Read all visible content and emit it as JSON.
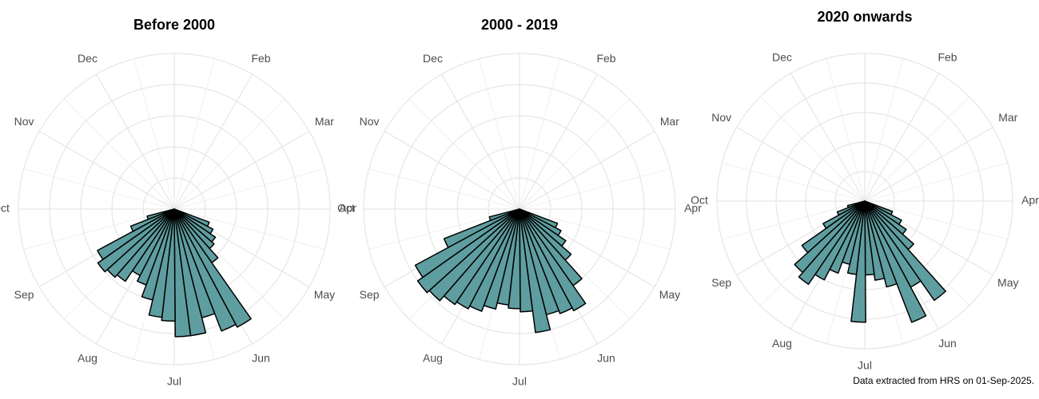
{
  "chart_data": [
    {
      "type": "rose",
      "title": "Before 2000",
      "categories": [
        null,
        "Feb",
        "Mar",
        "Apr",
        "May",
        "Jun",
        "Jul",
        "Aug",
        "Sep",
        "Oct",
        "Nov",
        "Dec"
      ],
      "xlim": [
        1,
        13
      ],
      "x": [
        4.8,
        5.03,
        5.26,
        5.49,
        5.72,
        5.95,
        6.18,
        6.41,
        6.64,
        6.87,
        7.1,
        7.33,
        7.56,
        7.79,
        8.02,
        8.25,
        8.48,
        8.71,
        8.94,
        9.17,
        9.4
      ],
      "values": [
        1.2,
        1.4,
        1.6,
        1.7,
        2.1,
        4.3,
        4.2,
        3.6,
        4.1,
        4.1,
        3.6,
        3.5,
        3.0,
        2.6,
        2.4,
        2.8,
        2.9,
        3.0,
        2.8,
        1.5,
        0.9
      ],
      "color": "#5f9ea0",
      "ylim": [
        0,
        5
      ],
      "yticks": [
        1,
        2,
        3,
        4,
        5
      ],
      "grid": true
    },
    {
      "type": "rose",
      "title": "2000 - 2019",
      "categories": [
        null,
        "Feb",
        "Mar",
        "Apr",
        "May",
        "Jun",
        "Jul",
        "Aug",
        "Sep",
        "Oct",
        "Nov",
        "Dec"
      ],
      "xlim": [
        1,
        13
      ],
      "x": [
        4.8,
        5.03,
        5.26,
        5.49,
        5.72,
        5.95,
        6.18,
        6.41,
        6.64,
        6.87,
        7.1,
        7.33,
        7.56,
        7.79,
        8.02,
        8.25,
        8.48,
        8.71,
        8.94,
        9.17,
        9.4
      ],
      "values": [
        1.3,
        1.5,
        1.8,
        2.2,
        3.0,
        3.7,
        3.6,
        3.5,
        4.0,
        3.3,
        3.2,
        3.1,
        3.3,
        3.5,
        3.6,
        3.7,
        3.9,
        4.0,
        3.8,
        2.6,
        1.0
      ],
      "color": "#5f9ea0",
      "ylim": [
        0,
        5
      ],
      "yticks": [
        1,
        2,
        3,
        4,
        5
      ],
      "grid": true
    },
    {
      "type": "rose",
      "title": "2020 onwards",
      "categories": [
        null,
        "Feb",
        "Mar",
        "Apr",
        "May",
        "Jun",
        "Jul",
        "Aug",
        "Sep",
        "Oct",
        "Nov",
        "Dec"
      ],
      "xlim": [
        1,
        13
      ],
      "x": [
        4.8,
        5.03,
        5.26,
        5.49,
        5.72,
        5.95,
        6.18,
        6.41,
        6.64,
        6.87,
        7.1,
        7.33,
        7.56,
        7.79,
        8.02,
        8.25,
        8.48,
        8.71,
        8.94,
        9.17,
        9.4
      ],
      "values": [
        1.0,
        1.4,
        1.7,
        2.2,
        4.1,
        3.3,
        4.4,
        3.0,
        2.7,
        2.5,
        4.1,
        2.5,
        2.2,
        2.6,
        3.0,
        3.4,
        3.2,
        2.6,
        1.6,
        1.0,
        0.6
      ],
      "color": "#5f9ea0",
      "ylim": [
        0,
        5
      ],
      "yticks": [
        1,
        2,
        3,
        4,
        5
      ],
      "grid": true
    }
  ],
  "caption": "Data extracted from HRS on 01-Sep-2025."
}
